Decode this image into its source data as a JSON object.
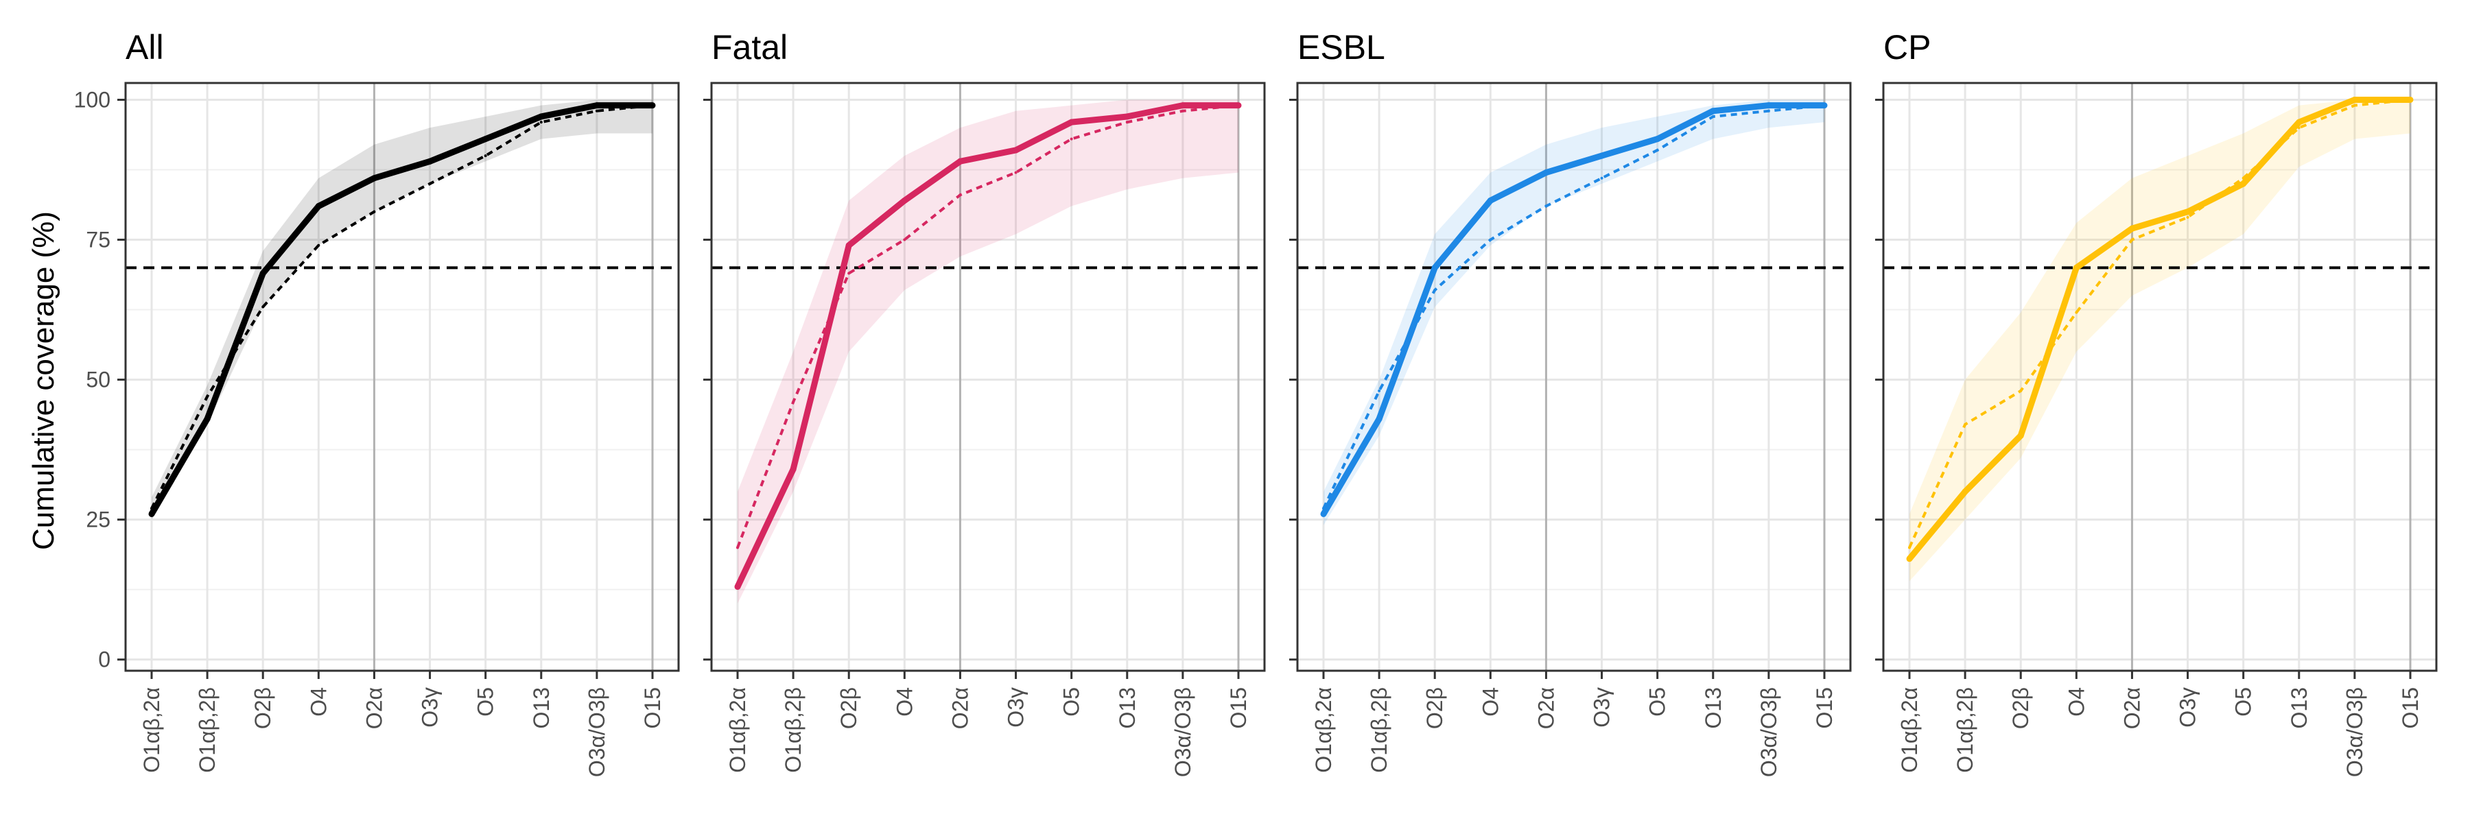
{
  "ylabel": "Cumulative coverage (%)",
  "reference_line": 70,
  "categories": [
    "O1αβ,2α",
    "O1αβ,2β",
    "O2β",
    "O4",
    "O2α",
    "O3γ",
    "O5",
    "O13",
    "O3α/O3β",
    "O15"
  ],
  "y_ticks": [
    "0",
    "25",
    "50",
    "75",
    "100"
  ],
  "chart_data": [
    {
      "type": "line",
      "title": "All",
      "color": "#000000",
      "ylim": [
        -2,
        103
      ],
      "categories": [
        "O1αβ,2α",
        "O1αβ,2β",
        "O2β",
        "O4",
        "O2α",
        "O3γ",
        "O5",
        "O13",
        "O3α/O3β",
        "O15"
      ],
      "series": [
        {
          "style": "solid",
          "values": [
            26,
            43,
            69,
            81,
            86,
            89,
            93,
            97,
            99,
            99
          ]
        },
        {
          "style": "dashed",
          "values": [
            27,
            47,
            63,
            74,
            80,
            85,
            90,
            96,
            98,
            99
          ]
        }
      ],
      "band": {
        "lower": [
          25,
          42,
          63,
          74,
          80,
          85,
          89,
          93,
          94,
          94
        ],
        "upper": [
          29,
          49,
          73,
          86,
          92,
          95,
          97,
          99,
          100,
          100
        ]
      }
    },
    {
      "type": "line",
      "title": "Fatal",
      "color": "#D62760",
      "ylim": [
        -2,
        103
      ],
      "categories": [
        "O1αβ,2α",
        "O1αβ,2β",
        "O2β",
        "O4",
        "O2α",
        "O3γ",
        "O5",
        "O13",
        "O3α/O3β",
        "O15"
      ],
      "series": [
        {
          "style": "solid",
          "values": [
            13,
            34,
            74,
            82,
            89,
            91,
            96,
            97,
            99,
            99
          ]
        },
        {
          "style": "dashed",
          "values": [
            20,
            46,
            69,
            75,
            83,
            87,
            93,
            96,
            98,
            99
          ]
        }
      ],
      "band": {
        "lower": [
          10,
          30,
          55,
          66,
          72,
          76,
          81,
          84,
          86,
          87
        ],
        "upper": [
          30,
          55,
          82,
          90,
          95,
          98,
          99,
          100,
          100,
          100
        ]
      }
    },
    {
      "type": "line",
      "title": "ESBL",
      "color": "#1E88E5",
      "ylim": [
        -2,
        103
      ],
      "categories": [
        "O1αβ,2α",
        "O1αβ,2β",
        "O2β",
        "O4",
        "O2α",
        "O3γ",
        "O5",
        "O13",
        "O3α/O3β",
        "O15"
      ],
      "series": [
        {
          "style": "solid",
          "values": [
            26,
            43,
            70,
            82,
            87,
            90,
            93,
            98,
            99,
            99
          ]
        },
        {
          "style": "dashed",
          "values": [
            27,
            48,
            66,
            75,
            81,
            86,
            91,
            97,
            98,
            99
          ]
        }
      ],
      "band": {
        "lower": [
          24,
          40,
          63,
          74,
          81,
          85,
          89,
          93,
          95,
          96
        ],
        "upper": [
          30,
          50,
          76,
          87,
          92,
          95,
          97,
          99,
          100,
          100
        ]
      }
    },
    {
      "type": "line",
      "title": "CP",
      "color": "#FFC107",
      "ylim": [
        -2,
        103
      ],
      "categories": [
        "O1αβ,2α",
        "O1αβ,2β",
        "O2β",
        "O4",
        "O2α",
        "O3γ",
        "O5",
        "O13",
        "O3α/O3β",
        "O15"
      ],
      "series": [
        {
          "style": "solid",
          "values": [
            18,
            30,
            40,
            70,
            77,
            80,
            85,
            96,
            100,
            100
          ]
        },
        {
          "style": "dashed",
          "values": [
            20,
            42,
            48,
            62,
            75,
            79,
            86,
            95,
            99,
            100
          ]
        }
      ],
      "band": {
        "lower": [
          14,
          25,
          36,
          55,
          65,
          70,
          76,
          88,
          93,
          94
        ],
        "upper": [
          26,
          50,
          62,
          78,
          86,
          90,
          94,
          99,
          100,
          100
        ]
      }
    }
  ]
}
